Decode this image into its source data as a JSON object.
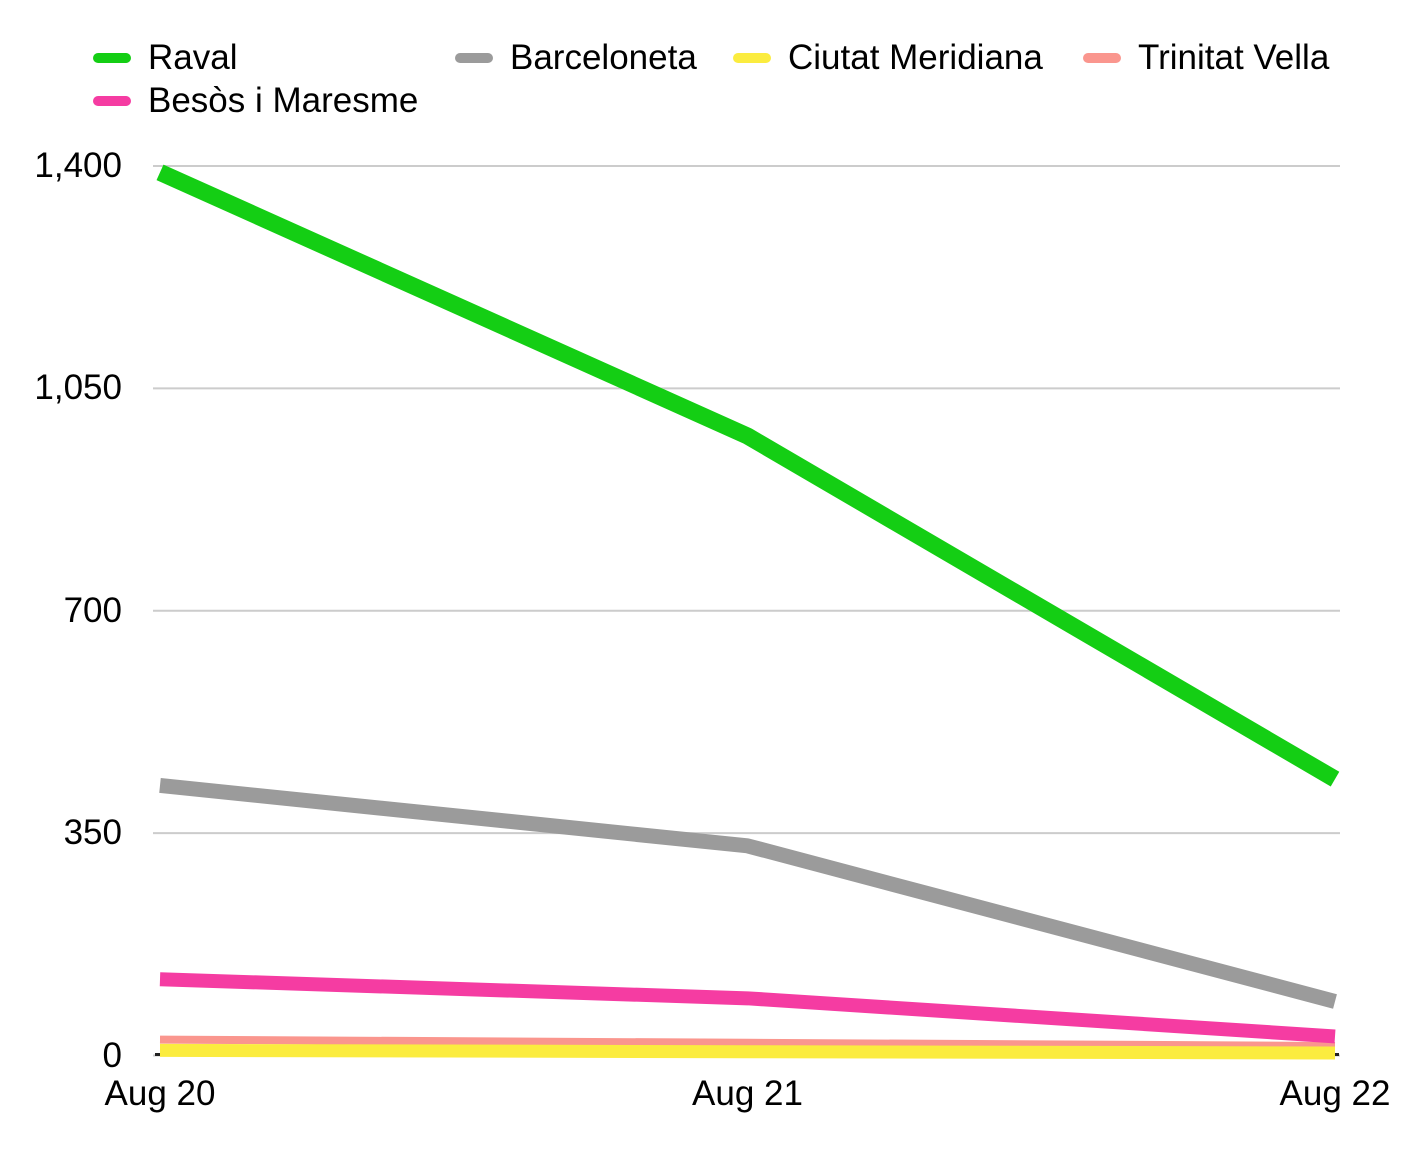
{
  "chart_data": {
    "type": "line",
    "x": [
      "Aug 20",
      "Aug 21",
      "Aug 22"
    ],
    "series": [
      {
        "name": "Raval",
        "color": "#14CE14",
        "stroke_width": 17,
        "values": [
          1390,
          975,
          435
        ]
      },
      {
        "name": "Barceloneta",
        "color": "#9B9B9B",
        "stroke_width": 15,
        "values": [
          425,
          330,
          85
        ]
      },
      {
        "name": "Ciutat Meridiana",
        "color": "#FBEC3F",
        "stroke_width": 13,
        "values": [
          8,
          6,
          4
        ]
      },
      {
        "name": "Trinitat Vella",
        "color": "#FA968E",
        "stroke_width": 8,
        "values": [
          25,
          20,
          15
        ]
      },
      {
        "name": "Besòs i Maresme",
        "color": "#F53CA2",
        "stroke_width": 14,
        "values": [
          120,
          90,
          30
        ]
      }
    ],
    "title": "",
    "xlabel": "",
    "ylabel": "",
    "ylim": [
      0,
      1400
    ],
    "yticks": [
      0,
      350,
      700,
      1050,
      1400
    ],
    "ytick_labels": [
      "0",
      "350",
      "700",
      "1,050",
      "1,400"
    ],
    "grid": "horizontal",
    "gridline_color": "#CCCCCC",
    "axis_line_color": "#222222",
    "legend_position": "top-left-two-rows"
  }
}
